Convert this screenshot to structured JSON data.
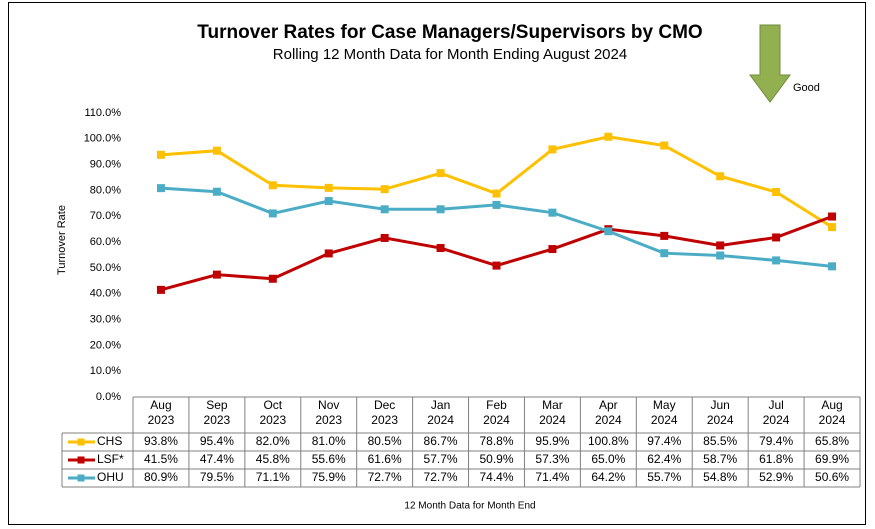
{
  "chart_data": {
    "type": "line",
    "title": "Turnover Rates for Case Managers/Supervisors by CMO",
    "subtitle": "Rolling 12 Month Data for Month Ending August 2024",
    "annotation": "Good",
    "y_label": "Turnover Rate",
    "x_label": "12 Month Data for Month End",
    "categories": [
      "Aug 2023",
      "Sep 2023",
      "Oct 2023",
      "Nov 2023",
      "Dec 2023",
      "Jan 2024",
      "Feb 2024",
      "Mar 2024",
      "Apr 2024",
      "May 2024",
      "Jun 2024",
      "Jul 2024",
      "Aug 2024"
    ],
    "series": [
      {
        "name": "CHS",
        "color": "#FFC000",
        "values": [
          93.8,
          95.4,
          82.0,
          81.0,
          80.5,
          86.7,
          78.8,
          95.9,
          100.8,
          97.4,
          85.5,
          79.4,
          65.8
        ],
        "value_labels": [
          "93.8%",
          "95.4%",
          "82.0%",
          "81.0%",
          "80.5%",
          "86.7%",
          "78.8%",
          "95.9%",
          "100.8%",
          "97.4%",
          "85.5%",
          "79.4%",
          "65.8%"
        ]
      },
      {
        "name": "LSF*",
        "color": "#C00000",
        "values": [
          41.5,
          47.4,
          45.8,
          55.6,
          61.6,
          57.7,
          50.9,
          57.3,
          65.0,
          62.4,
          58.7,
          61.8,
          69.9
        ],
        "value_labels": [
          "41.5%",
          "47.4%",
          "45.8%",
          "55.6%",
          "61.6%",
          "57.7%",
          "50.9%",
          "57.3%",
          "65.0%",
          "62.4%",
          "58.7%",
          "61.8%",
          "69.9%"
        ]
      },
      {
        "name": "OHU",
        "color": "#4BACC6",
        "values": [
          80.9,
          79.5,
          71.1,
          75.9,
          72.7,
          72.7,
          74.4,
          71.4,
          64.2,
          55.7,
          54.8,
          52.9,
          50.6
        ],
        "value_labels": [
          "80.9%",
          "79.5%",
          "71.1%",
          "75.9%",
          "72.7%",
          "72.7%",
          "74.4%",
          "71.4%",
          "64.2%",
          "55.7%",
          "54.8%",
          "52.9%",
          "50.6%"
        ]
      }
    ],
    "ylim": [
      0,
      110
    ],
    "yticks": [
      {
        "value": 0,
        "label": "0.0%"
      },
      {
        "value": 10,
        "label": "10.0%"
      },
      {
        "value": 20,
        "label": "20.0%"
      },
      {
        "value": 30,
        "label": "30.0%"
      },
      {
        "value": 40,
        "label": "40.0%"
      },
      {
        "value": 50,
        "label": "50.0%"
      },
      {
        "value": 60,
        "label": "60.0%"
      },
      {
        "value": 70,
        "label": "70.0%"
      },
      {
        "value": 80,
        "label": "80.0%"
      },
      {
        "value": 90,
        "label": "90.0%"
      },
      {
        "value": 100,
        "label": "100.0%"
      },
      {
        "value": 110,
        "label": "110.0%"
      }
    ],
    "grid": false
  }
}
